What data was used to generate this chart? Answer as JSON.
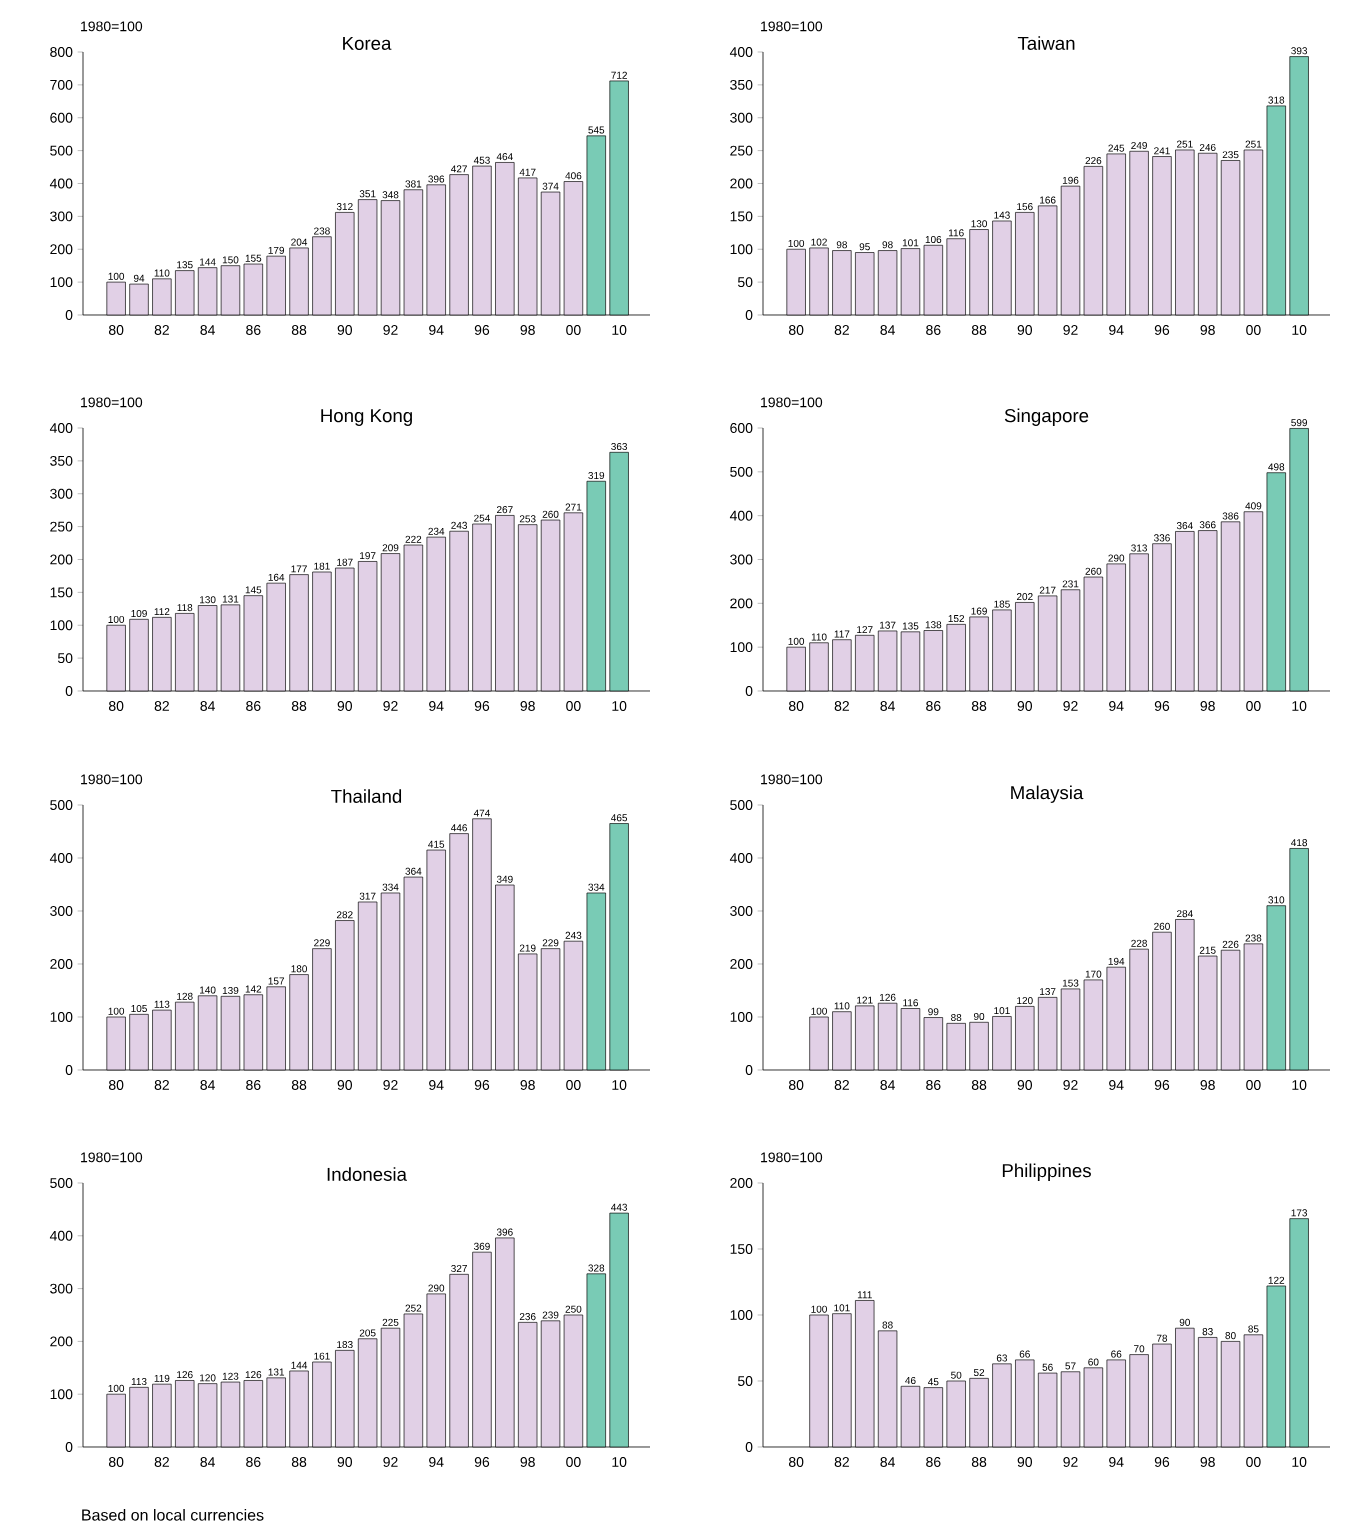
{
  "chart_data": [
    {
      "type": "bar",
      "title": "Korea",
      "ylabel": "1980=100",
      "categories": [
        "80",
        null,
        "82",
        null,
        "84",
        null,
        "86",
        null,
        "88",
        null,
        "90",
        null,
        "92",
        null,
        "94",
        null,
        "96",
        null,
        "98",
        null,
        "00",
        null,
        "10"
      ],
      "values": [
        100,
        94,
        110,
        135,
        144,
        150,
        155,
        179,
        204,
        238,
        312,
        351,
        348,
        381,
        396,
        427,
        453,
        464,
        417,
        374,
        406,
        545,
        712
      ],
      "colors": [
        "#e1d0e6",
        "#e1d0e6",
        "#e1d0e6",
        "#e1d0e6",
        "#e1d0e6",
        "#e1d0e6",
        "#e1d0e6",
        "#e1d0e6",
        "#e1d0e6",
        "#e1d0e6",
        "#e1d0e6",
        "#e1d0e6",
        "#e1d0e6",
        "#e1d0e6",
        "#e1d0e6",
        "#e1d0e6",
        "#e1d0e6",
        "#e1d0e6",
        "#e1d0e6",
        "#e1d0e6",
        "#e1d0e6",
        "#79cbb5",
        "#79cbb5"
      ],
      "ylim": [
        0,
        800
      ],
      "yticks": [
        0,
        100,
        200,
        300,
        400,
        500,
        600,
        700,
        800
      ],
      "data_labels": true
    },
    {
      "type": "bar",
      "title": "Taiwan",
      "ylabel": "1980=100",
      "categories": [
        "80",
        null,
        "82",
        null,
        "84",
        null,
        "86",
        null,
        "88",
        null,
        "90",
        null,
        "92",
        null,
        "94",
        null,
        "96",
        null,
        "98",
        null,
        "00",
        null,
        "10"
      ],
      "values": [
        100,
        102,
        98,
        95,
        98,
        101,
        106,
        116,
        130,
        143,
        156,
        166,
        196,
        226,
        245,
        249,
        241,
        251,
        246,
        235,
        251,
        318,
        393
      ],
      "colors": [
        "#e1d0e6",
        "#e1d0e6",
        "#e1d0e6",
        "#e1d0e6",
        "#e1d0e6",
        "#e1d0e6",
        "#e1d0e6",
        "#e1d0e6",
        "#e1d0e6",
        "#e1d0e6",
        "#e1d0e6",
        "#e1d0e6",
        "#e1d0e6",
        "#e1d0e6",
        "#e1d0e6",
        "#e1d0e6",
        "#e1d0e6",
        "#e1d0e6",
        "#e1d0e6",
        "#e1d0e6",
        "#e1d0e6",
        "#79cbb5",
        "#79cbb5"
      ],
      "ylim": [
        0,
        400
      ],
      "yticks": [
        0,
        50,
        100,
        150,
        200,
        250,
        300,
        350,
        400
      ],
      "data_labels": true
    },
    {
      "type": "bar",
      "title": "Hong Kong",
      "ylabel": "1980=100",
      "categories": [
        "80",
        null,
        "82",
        null,
        "84",
        null,
        "86",
        null,
        "88",
        null,
        "90",
        null,
        "92",
        null,
        "94",
        null,
        "96",
        null,
        "98",
        null,
        "00",
        null,
        "10"
      ],
      "values": [
        100,
        109,
        112,
        118,
        130,
        131,
        145,
        164,
        177,
        181,
        187,
        197,
        209,
        222,
        234,
        243,
        254,
        267,
        253,
        260,
        271,
        319,
        363
      ],
      "colors": [
        "#e1d0e6",
        "#e1d0e6",
        "#e1d0e6",
        "#e1d0e6",
        "#e1d0e6",
        "#e1d0e6",
        "#e1d0e6",
        "#e1d0e6",
        "#e1d0e6",
        "#e1d0e6",
        "#e1d0e6",
        "#e1d0e6",
        "#e1d0e6",
        "#e1d0e6",
        "#e1d0e6",
        "#e1d0e6",
        "#e1d0e6",
        "#e1d0e6",
        "#e1d0e6",
        "#e1d0e6",
        "#e1d0e6",
        "#79cbb5",
        "#79cbb5"
      ],
      "ylim": [
        0,
        400
      ],
      "yticks": [
        0,
        50,
        100,
        150,
        200,
        250,
        300,
        350,
        400
      ],
      "data_labels": true
    },
    {
      "type": "bar",
      "title": "Singapore",
      "ylabel": "1980=100",
      "categories": [
        "80",
        null,
        "82",
        null,
        "84",
        null,
        "86",
        null,
        "88",
        null,
        "90",
        null,
        "92",
        null,
        "94",
        null,
        "96",
        null,
        "98",
        null,
        "00",
        null,
        "10"
      ],
      "values": [
        100,
        110,
        117,
        127,
        137,
        135,
        138,
        152,
        169,
        185,
        202,
        217,
        231,
        260,
        290,
        313,
        336,
        364,
        366,
        386,
        409,
        498,
        599
      ],
      "colors": [
        "#e1d0e6",
        "#e1d0e6",
        "#e1d0e6",
        "#e1d0e6",
        "#e1d0e6",
        "#e1d0e6",
        "#e1d0e6",
        "#e1d0e6",
        "#e1d0e6",
        "#e1d0e6",
        "#e1d0e6",
        "#e1d0e6",
        "#e1d0e6",
        "#e1d0e6",
        "#e1d0e6",
        "#e1d0e6",
        "#e1d0e6",
        "#e1d0e6",
        "#e1d0e6",
        "#e1d0e6",
        "#e1d0e6",
        "#79cbb5",
        "#79cbb5"
      ],
      "ylim": [
        0,
        600
      ],
      "yticks": [
        0,
        100,
        200,
        300,
        400,
        500,
        600
      ],
      "data_labels": true
    },
    {
      "type": "bar",
      "title": "Thailand",
      "ylabel": "1980=100",
      "categories": [
        "80",
        null,
        "82",
        null,
        "84",
        null,
        "86",
        null,
        "88",
        null,
        "90",
        null,
        "92",
        null,
        "94",
        null,
        "96",
        null,
        "98",
        null,
        "00",
        null,
        "10"
      ],
      "values": [
        100,
        105,
        113,
        128,
        140,
        139,
        142,
        157,
        180,
        229,
        282,
        317,
        334,
        364,
        415,
        446,
        474,
        349,
        219,
        229,
        243,
        334,
        465
      ],
      "colors": [
        "#e1d0e6",
        "#e1d0e6",
        "#e1d0e6",
        "#e1d0e6",
        "#e1d0e6",
        "#e1d0e6",
        "#e1d0e6",
        "#e1d0e6",
        "#e1d0e6",
        "#e1d0e6",
        "#e1d0e6",
        "#e1d0e6",
        "#e1d0e6",
        "#e1d0e6",
        "#e1d0e6",
        "#e1d0e6",
        "#e1d0e6",
        "#e1d0e6",
        "#e1d0e6",
        "#e1d0e6",
        "#e1d0e6",
        "#79cbb5",
        "#79cbb5"
      ],
      "ylim": [
        0,
        500
      ],
      "yticks": [
        0,
        100,
        200,
        300,
        400,
        500
      ],
      "data_labels": true
    },
    {
      "type": "bar",
      "title": "Malaysia",
      "ylabel": "1980=100",
      "categories": [
        "80",
        null,
        "82",
        null,
        "84",
        null,
        "86",
        null,
        "88",
        null,
        "90",
        null,
        "92",
        null,
        "94",
        null,
        "96",
        null,
        "98",
        null,
        "00",
        null,
        "10"
      ],
      "values": [
        null,
        100,
        110,
        121,
        126,
        116,
        99,
        88,
        90,
        101,
        120,
        137,
        153,
        170,
        194,
        228,
        260,
        284,
        215,
        226,
        238,
        310,
        418
      ],
      "colors": [
        "#e1d0e6",
        "#e1d0e6",
        "#e1d0e6",
        "#e1d0e6",
        "#e1d0e6",
        "#e1d0e6",
        "#e1d0e6",
        "#e1d0e6",
        "#e1d0e6",
        "#e1d0e6",
        "#e1d0e6",
        "#e1d0e6",
        "#e1d0e6",
        "#e1d0e6",
        "#e1d0e6",
        "#e1d0e6",
        "#e1d0e6",
        "#e1d0e6",
        "#e1d0e6",
        "#e1d0e6",
        "#e1d0e6",
        "#79cbb5",
        "#79cbb5"
      ],
      "ylim": [
        0,
        500
      ],
      "yticks": [
        0,
        100,
        200,
        300,
        400,
        500
      ],
      "data_labels": true
    },
    {
      "type": "bar",
      "title": "Indonesia",
      "ylabel": "1980=100",
      "categories": [
        "80",
        null,
        "82",
        null,
        "84",
        null,
        "86",
        null,
        "88",
        null,
        "90",
        null,
        "92",
        null,
        "94",
        null,
        "96",
        null,
        "98",
        null,
        "00",
        null,
        "10"
      ],
      "values": [
        100,
        113,
        119,
        126,
        120,
        123,
        126,
        131,
        144,
        161,
        183,
        205,
        225,
        252,
        290,
        327,
        369,
        396,
        236,
        239,
        250,
        328,
        443
      ],
      "colors": [
        "#e1d0e6",
        "#e1d0e6",
        "#e1d0e6",
        "#e1d0e6",
        "#e1d0e6",
        "#e1d0e6",
        "#e1d0e6",
        "#e1d0e6",
        "#e1d0e6",
        "#e1d0e6",
        "#e1d0e6",
        "#e1d0e6",
        "#e1d0e6",
        "#e1d0e6",
        "#e1d0e6",
        "#e1d0e6",
        "#e1d0e6",
        "#e1d0e6",
        "#e1d0e6",
        "#e1d0e6",
        "#e1d0e6",
        "#79cbb5",
        "#79cbb5"
      ],
      "ylim": [
        0,
        500
      ],
      "yticks": [
        0,
        100,
        200,
        300,
        400,
        500
      ],
      "data_labels": true,
      "annotations": [
        "Based on local currencies"
      ]
    },
    {
      "type": "bar",
      "title": "Philippines",
      "ylabel": "1980=100",
      "categories": [
        "80",
        null,
        "82",
        null,
        "84",
        null,
        "86",
        null,
        "88",
        null,
        "90",
        null,
        "92",
        null,
        "94",
        null,
        "96",
        null,
        "98",
        null,
        "00",
        null,
        "10"
      ],
      "values": [
        null,
        100,
        101,
        111,
        88,
        46,
        45,
        50,
        52,
        63,
        66,
        56,
        57,
        60,
        66,
        70,
        78,
        90,
        83,
        80,
        85,
        122,
        173
      ],
      "colors": [
        "#e1d0e6",
        "#e1d0e6",
        "#e1d0e6",
        "#e1d0e6",
        "#e1d0e6",
        "#e1d0e6",
        "#e1d0e6",
        "#e1d0e6",
        "#e1d0e6",
        "#e1d0e6",
        "#e1d0e6",
        "#e1d0e6",
        "#e1d0e6",
        "#e1d0e6",
        "#e1d0e6",
        "#e1d0e6",
        "#e1d0e6",
        "#e1d0e6",
        "#e1d0e6",
        "#e1d0e6",
        "#e1d0e6",
        "#79cbb5",
        "#79cbb5"
      ],
      "ylim": [
        0,
        200
      ],
      "yticks": [
        0,
        50,
        100,
        150,
        200
      ],
      "data_labels": true
    }
  ]
}
